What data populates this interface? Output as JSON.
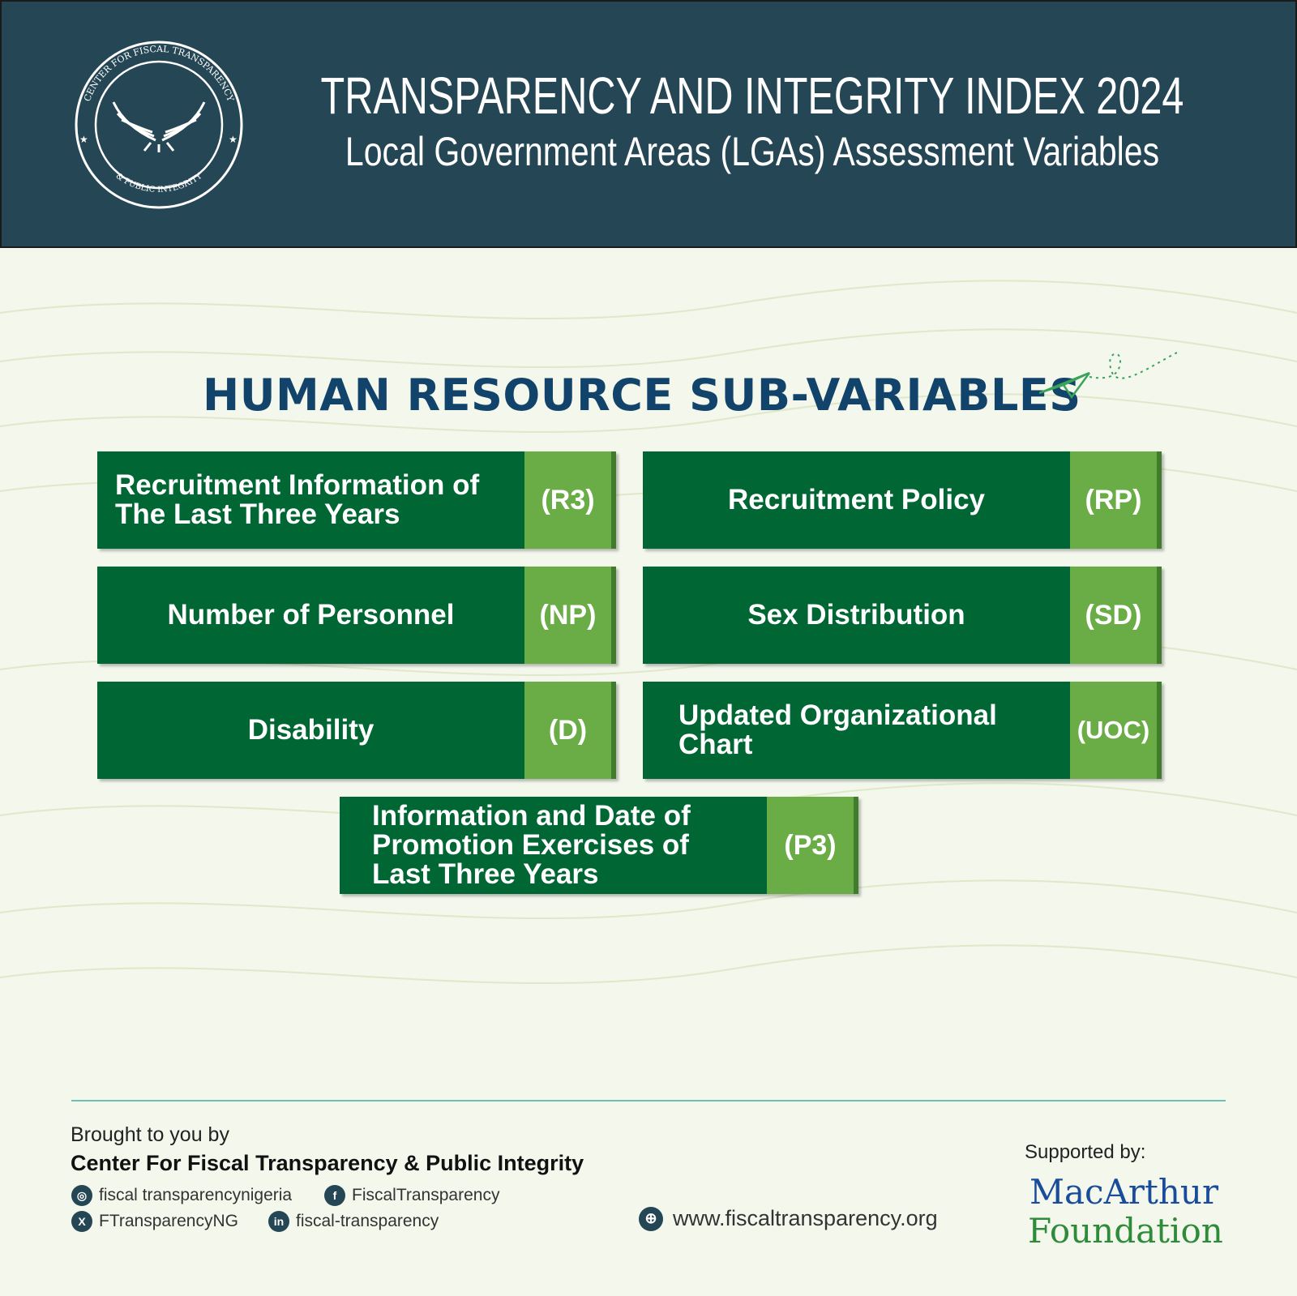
{
  "header": {
    "title": "TRANSPARENCY AND INTEGRITY INDEX 2024",
    "subtitle": "Local Government Areas (LGAs) Assessment Variables",
    "logo_text_top": "CENTER FOR FISCAL TRANSPARENCY",
    "logo_text_bottom": "& PUBLIC INTEGRITY"
  },
  "section_title": "HUMAN RESOURCE SUB-VARIABLES",
  "variables": [
    {
      "label": "Recruitment Information of The Last Three Years",
      "code": "(R3)"
    },
    {
      "label": "Recruitment Policy",
      "code": "(RP)"
    },
    {
      "label": "Number of Personnel",
      "code": "(NP)"
    },
    {
      "label": "Sex Distribution",
      "code": "(SD)"
    },
    {
      "label": "Disability",
      "code": "(D)"
    },
    {
      "label": "Updated Organizational Chart",
      "code": "(UOC)"
    },
    {
      "label": "Information and Date of Promotion Exercises of Last Three Years",
      "code": "(P3)"
    }
  ],
  "footer": {
    "brought_by": "Brought to you by",
    "org": "Center For Fiscal Transparency & Public Integrity",
    "instagram": "fiscal transparencynigeria",
    "facebook": "FiscalTransparency",
    "x": "FTransparencyNG",
    "linkedin": "fiscal-transparency",
    "website": "www.fiscaltransparency.org",
    "supported_by": "Supported by:",
    "sponsor_line1": "MacArthur",
    "sponsor_line2": "Foundation"
  },
  "colors": {
    "header": "#254654",
    "dark_green": "#006633",
    "light_green": "#6aad46",
    "title": "#12436a"
  }
}
